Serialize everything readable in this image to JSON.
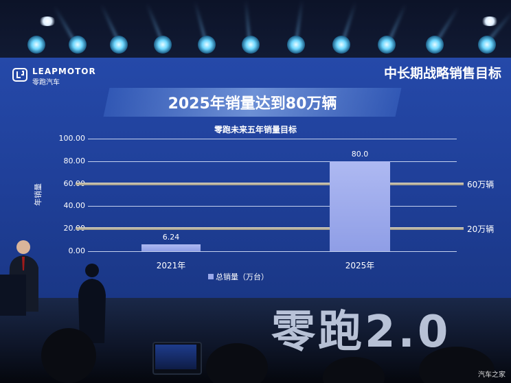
{
  "brand": {
    "logo_text": "LEAPMOTOR",
    "logo_sub": "零跑汽车"
  },
  "slide": {
    "corner_title": "中长期战略销售目标",
    "banner": "2025年销量达到80万辆"
  },
  "chart_data": {
    "type": "bar",
    "title": "零跑未来五年销量目标",
    "ylabel": "年销量",
    "categories": [
      "2021年",
      "2025年"
    ],
    "series": [
      {
        "name": "总销量（万台）",
        "values": [
          6.24,
          80.0
        ]
      }
    ],
    "data_labels": [
      "6.24",
      "80.0"
    ],
    "ylim": [
      0,
      100
    ],
    "yticks": [
      "100.00",
      "80.00",
      "60.00",
      "40.00",
      "20.00",
      "0.00"
    ],
    "reference_lines": [
      {
        "value": 60,
        "label": "60万辆"
      },
      {
        "value": 20,
        "label": "20万辆"
      }
    ],
    "grid": true,
    "legend": "bottom"
  },
  "stage": {
    "big_sign": "零跑2.0"
  },
  "watermark": "汽车之家"
}
